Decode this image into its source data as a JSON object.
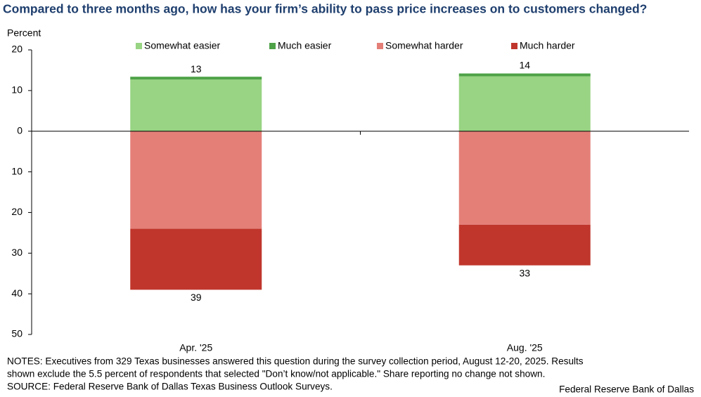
{
  "chart_data": {
    "type": "diverging-stacked-bar",
    "title": "Compared to three months ago, how has your firm’s ability to pass price increases on to customers changed?",
    "y_label": "Percent",
    "categories": [
      "Apr. '25",
      "Aug. '25"
    ],
    "series": [
      {
        "name": "Somewhat easier",
        "color": "#98d483",
        "values": [
          12.7,
          13.5
        ]
      },
      {
        "name": "Much easier",
        "color": "#4ea247",
        "values": [
          0.7,
          0.7
        ]
      },
      {
        "name": "Somewhat harder",
        "color": "#e47f78",
        "values": [
          -24,
          -23
        ]
      },
      {
        "name": "Much harder",
        "color": "#c0362c",
        "values": [
          -15,
          -10
        ]
      }
    ],
    "total_labels": {
      "positive": [
        13,
        14
      ],
      "negative": [
        {
          "value": -39,
          "label": "39"
        },
        {
          "value": -33,
          "label": "33"
        }
      ]
    },
    "ylim": [
      -50,
      20
    ],
    "yticks": [
      20,
      10,
      0,
      {
        "value": -10,
        "label": "10"
      },
      {
        "value": -20,
        "label": "20"
      },
      {
        "value": -30,
        "label": "30"
      },
      {
        "value": -40,
        "label": "40"
      },
      {
        "value": -50,
        "label": "50"
      }
    ],
    "notes": [
      "NOTES: Executives from 329 Texas businesses answered this question during the survey collection period, August 12-20, 2025. Results",
      "shown exclude the 5.5 percent of respondents that selected \"Don’t know/not applicable.\" Share reporting no change not shown.",
      "SOURCE: Federal Reserve Bank of Dallas Texas Business Outlook Surveys."
    ],
    "credit": "Federal Reserve Bank of Dallas"
  }
}
